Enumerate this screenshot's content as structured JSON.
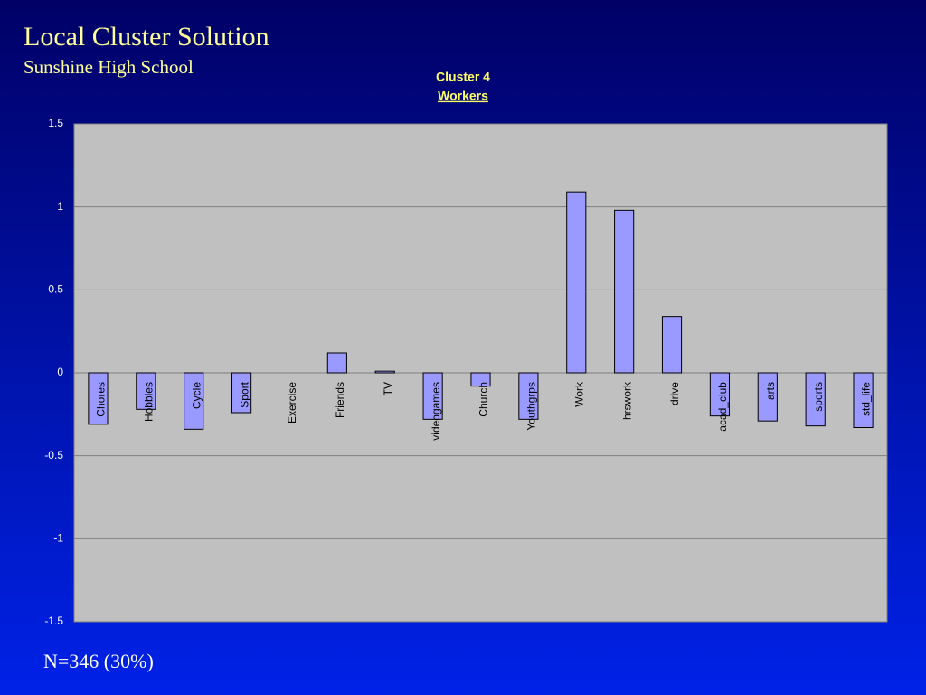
{
  "slide": {
    "title": "Local Cluster Solution",
    "subtitle": "Sunshine High School",
    "footer": "N=346 (30%)"
  },
  "chart_data": {
    "type": "bar",
    "title": "Cluster 4",
    "subtitle": "Workers",
    "categories": [
      "Chores",
      "Hobbies",
      "Cycle",
      "Sport",
      "Exercise",
      "Friends",
      "TV",
      "videogames",
      "Church",
      "Youthgrps",
      "Work",
      "hrswork",
      "drive",
      "acad_club",
      "arts",
      "sports",
      "std_life"
    ],
    "values": [
      -0.31,
      -0.22,
      -0.34,
      -0.24,
      0,
      0.12,
      0.01,
      -0.28,
      -0.08,
      -0.28,
      1.09,
      0.98,
      0.34,
      -0.26,
      -0.29,
      -0.32,
      -0.33
    ],
    "color": "#9999ff",
    "ylim": [
      -1.5,
      1.5
    ],
    "yticks": [
      1.5,
      1,
      0.5,
      0,
      -0.5,
      -1,
      -1.5
    ],
    "grid": true
  }
}
